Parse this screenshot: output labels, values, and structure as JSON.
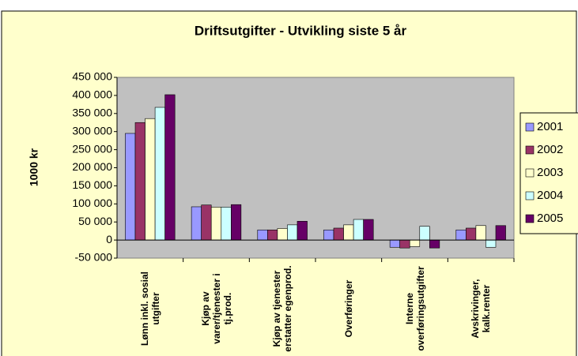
{
  "chart_data": {
    "type": "bar",
    "title": "Driftsutgifter - Utvikling siste 5 år",
    "y_label": "1000 kr",
    "categories": [
      "Lønn inkl. sosial utgifter",
      "Kjøp av varer/tjenester i tj.prod.",
      "Kjøp av tjenester erstatter egenprod.",
      "Overføringer",
      "Interne overføringsutgifter",
      "Avskrivinger, kalk.renter"
    ],
    "series": [
      {
        "name": "2001",
        "color": "#9999ff",
        "values": [
          295000,
          92000,
          28000,
          28000,
          -20000,
          28000
        ]
      },
      {
        "name": "2002",
        "color": "#993366",
        "values": [
          325000,
          97000,
          28000,
          33000,
          -22000,
          33000
        ]
      },
      {
        "name": "2003",
        "color": "#ffffcc",
        "values": [
          336000,
          91000,
          32000,
          42000,
          -18000,
          40000
        ]
      },
      {
        "name": "2004",
        "color": "#ccffff",
        "values": [
          367000,
          91000,
          42000,
          57000,
          38000,
          -20000
        ]
      },
      {
        "name": "2005",
        "color": "#660066",
        "values": [
          402000,
          98000,
          52000,
          57000,
          -22000,
          40000
        ]
      }
    ],
    "ylim": [
      -50000,
      450000
    ],
    "yticks": [
      {
        "value": -50000,
        "label": "-50 000"
      },
      0,
      {
        "value": 50000,
        "label": "50 000"
      },
      {
        "value": 100000,
        "label": "100 000"
      },
      {
        "value": 150000,
        "label": "150 000"
      },
      {
        "value": 200000,
        "label": "200 000"
      },
      {
        "value": 250000,
        "label": "250 000"
      },
      {
        "value": 300000,
        "label": "300 000"
      },
      {
        "value": 350000,
        "label": "350 000"
      },
      {
        "value": 400000,
        "label": "400 000"
      },
      {
        "value": 450000,
        "label": "450 000"
      }
    ],
    "grid": false,
    "legend": "right"
  }
}
